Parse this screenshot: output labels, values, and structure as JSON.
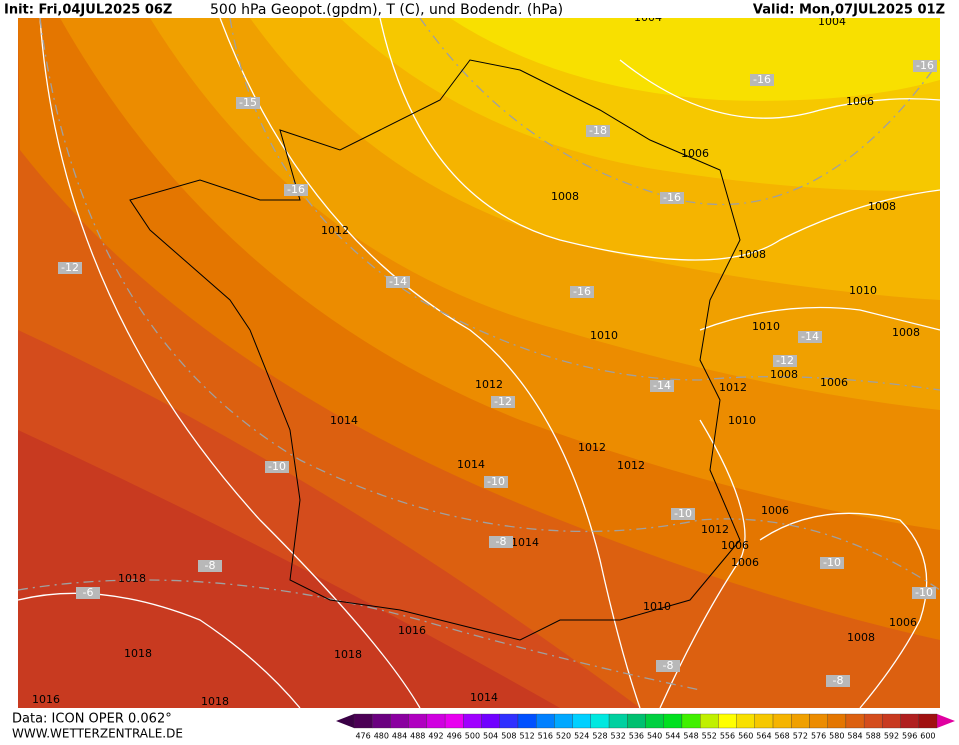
{
  "header": {
    "init": "Init: Fri,04JUL2025 06Z",
    "title": "500 hPa Geopot.(gpdm), T (C), und Bodendr. (hPa)",
    "valid": "Valid: Mon,07JUL2025 01Z"
  },
  "footer": {
    "data": "Data: ICON OPER 0.062°",
    "website": "WWW.WETTERZENTRALE.DE"
  },
  "colorbar": {
    "labels": [
      476,
      480,
      484,
      488,
      492,
      496,
      500,
      504,
      508,
      512,
      516,
      520,
      524,
      528,
      532,
      536,
      540,
      544,
      548,
      552,
      556,
      560,
      564,
      568,
      572,
      576,
      580,
      584,
      588,
      592,
      596,
      600
    ],
    "colors": [
      "#4b0055",
      "#6a0080",
      "#8a00a0",
      "#b000c0",
      "#d000e0",
      "#e800f0",
      "#a000ff",
      "#7000ff",
      "#3030ff",
      "#0050ff",
      "#0080ff",
      "#00a8ff",
      "#00d0ff",
      "#00e8e0",
      "#00d0a0",
      "#00c070",
      "#00d040",
      "#00e020",
      "#40f000",
      "#c0f000",
      "#ffff00",
      "#f8e000",
      "#f6c800",
      "#f5b400",
      "#f0a000",
      "#ec8c00",
      "#e47600",
      "#dc6010",
      "#d44c1c",
      "#c83a20",
      "#b02020",
      "#a01010"
    ]
  },
  "isobar_labels": [
    1004,
    1004,
    1006,
    1006,
    1008,
    1008,
    1012,
    1008,
    1010,
    1010,
    1010,
    1008,
    1008,
    1006,
    1012,
    1012,
    1014,
    1010,
    1012,
    1012,
    1014,
    1006,
    1012,
    1014,
    1006,
    1006,
    1018,
    1010,
    1006,
    1016,
    1008,
    1018,
    1018,
    1014,
    1016,
    1018
  ],
  "temperature_labels": [
    -16,
    -16,
    -15,
    -18,
    -16,
    -16,
    -12,
    -14,
    -16,
    -14,
    -12,
    -14,
    -12,
    -10,
    -10,
    -10,
    -8,
    -10,
    -8,
    -6,
    -10,
    -8,
    -8
  ]
}
